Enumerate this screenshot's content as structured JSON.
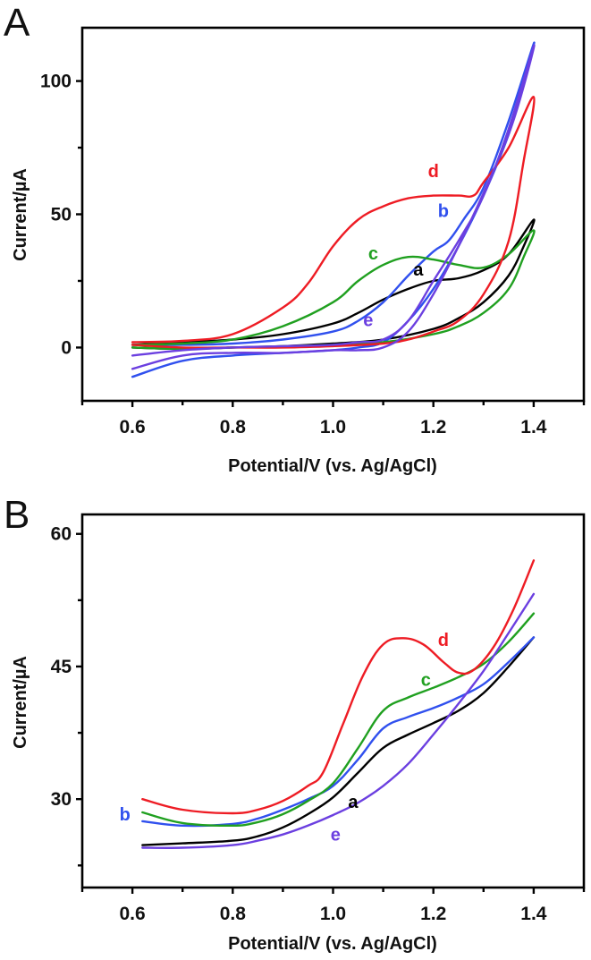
{
  "chart_data": [
    {
      "panel_label": "A",
      "type": "line",
      "title": "",
      "xlabel": "Potential/V (vs. Ag/AgCl)",
      "ylabel": "Current/µA",
      "xlim": [
        0.5,
        1.5
      ],
      "ylim": [
        -20,
        120
      ],
      "xticks": [
        0.6,
        0.8,
        1.0,
        1.2,
        1.4
      ],
      "xtick_labels": [
        "0.6",
        "0.8",
        "1.0",
        "1.2",
        "1.4"
      ],
      "xminor": [
        0.5,
        0.7,
        0.9,
        1.1,
        1.3,
        1.5
      ],
      "yticks": [
        0,
        50,
        100
      ],
      "ytick_labels": [
        "0",
        "50",
        "100"
      ],
      "yminor": [
        25,
        75
      ],
      "grid": false,
      "legend": "inline-labels",
      "series": [
        {
          "name": "a",
          "color": "#000000",
          "x": [
            0.6,
            0.7,
            0.8,
            0.9,
            1.0,
            1.05,
            1.1,
            1.15,
            1.2,
            1.25,
            1.3,
            1.35,
            1.4,
            1.38,
            1.35,
            1.3,
            1.25,
            1.2,
            1.1,
            1.0,
            0.9,
            0.8,
            0.7,
            0.6
          ],
          "y": [
            1,
            2,
            3,
            5,
            9,
            13,
            18,
            22,
            25,
            26,
            29,
            35,
            48,
            38,
            27,
            17,
            11,
            7,
            3,
            1.5,
            0.5,
            0,
            -0.5,
            0
          ],
          "label_at": [
            1.17,
            27
          ]
        },
        {
          "name": "b",
          "color": "#3050ee",
          "x": [
            0.6,
            0.7,
            0.8,
            0.9,
            1.0,
            1.05,
            1.1,
            1.15,
            1.2,
            1.23,
            1.26,
            1.3,
            1.35,
            1.4,
            1.38,
            1.35,
            1.3,
            1.25,
            1.2,
            1.15,
            1.1,
            1.05,
            1.0,
            0.9,
            0.8,
            0.7,
            0.6
          ],
          "y": [
            1,
            1,
            1.5,
            3,
            6,
            10,
            17,
            27,
            36,
            40,
            48,
            60,
            85,
            114,
            100,
            80,
            57,
            38,
            22,
            10,
            2,
            0,
            -1,
            -2,
            -3,
            -5,
            -11
          ],
          "label_at": [
            1.22,
            49
          ]
        },
        {
          "name": "c",
          "color": "#20a020",
          "x": [
            0.6,
            0.7,
            0.8,
            0.9,
            1.0,
            1.05,
            1.1,
            1.15,
            1.2,
            1.25,
            1.3,
            1.35,
            1.4,
            1.38,
            1.35,
            1.3,
            1.25,
            1.2,
            1.1,
            1.0,
            0.9,
            0.8,
            0.7,
            0.6
          ],
          "y": [
            1,
            1.5,
            3,
            8,
            17,
            25,
            31,
            34,
            33,
            31,
            30,
            35,
            44,
            34,
            22,
            13,
            8,
            5,
            2,
            1,
            0.5,
            0,
            -0.5,
            0
          ],
          "label_at": [
            1.08,
            33
          ]
        },
        {
          "name": "d",
          "color": "#ee1c24",
          "x": [
            0.6,
            0.7,
            0.8,
            0.9,
            0.95,
            1.0,
            1.05,
            1.1,
            1.15,
            1.2,
            1.25,
            1.28,
            1.3,
            1.35,
            1.4,
            1.38,
            1.35,
            1.3,
            1.25,
            1.2,
            1.15,
            1.1,
            1.0,
            0.9,
            0.8,
            0.7,
            0.6
          ],
          "y": [
            2,
            2.5,
            5,
            15,
            24,
            38,
            48,
            53,
            56,
            57,
            57,
            57,
            62,
            75,
            94,
            70,
            40,
            20,
            10,
            6,
            3,
            1.5,
            0.5,
            0,
            0,
            0,
            1
          ],
          "label_at": [
            1.2,
            64
          ]
        },
        {
          "name": "e",
          "color": "#6b3fe0",
          "x": [
            0.6,
            0.7,
            0.8,
            0.9,
            1.0,
            1.05,
            1.1,
            1.15,
            1.2,
            1.25,
            1.3,
            1.35,
            1.4,
            1.38,
            1.35,
            1.3,
            1.25,
            1.2,
            1.15,
            1.1,
            1.05,
            1.0,
            0.9,
            0.8,
            0.7,
            0.6
          ],
          "y": [
            -3,
            -1,
            0,
            0.5,
            1,
            2,
            3,
            10,
            25,
            40,
            57,
            82,
            113,
            98,
            80,
            58,
            38,
            20,
            6,
            0,
            -1,
            -1,
            -2,
            -2,
            -3,
            -8
          ],
          "label_at": [
            1.07,
            8
          ]
        }
      ]
    },
    {
      "panel_label": "B",
      "type": "line",
      "title": "",
      "xlabel": "Potential/V (vs. Ag/AgCl)",
      "ylabel": "Current/µA",
      "xlim": [
        0.5,
        1.5
      ],
      "ylim": [
        20,
        62.2
      ],
      "xticks": [
        0.6,
        0.8,
        1.0,
        1.2,
        1.4
      ],
      "xtick_labels": [
        "0.6",
        "0.8",
        "1.0",
        "1.2",
        "1.4"
      ],
      "xminor": [
        0.5,
        0.7,
        0.9,
        1.1,
        1.3,
        1.5
      ],
      "yticks": [
        30,
        45,
        60
      ],
      "ytick_labels": [
        "30",
        "45",
        "60"
      ],
      "yminor": [
        22.5,
        37.5,
        52.5
      ],
      "grid": false,
      "legend": "inline-labels",
      "series": [
        {
          "name": "a",
          "color": "#000000",
          "x": [
            0.62,
            0.7,
            0.8,
            0.85,
            0.9,
            0.95,
            1.0,
            1.05,
            1.1,
            1.15,
            1.2,
            1.25,
            1.3,
            1.35,
            1.4
          ],
          "y": [
            24.8,
            25.0,
            25.3,
            25.8,
            26.8,
            28.3,
            30.2,
            33.0,
            35.8,
            37.3,
            38.6,
            40.0,
            42.0,
            45.0,
            48.3
          ],
          "label_at": [
            1.04,
            29.0
          ]
        },
        {
          "name": "b",
          "color": "#3050ee",
          "x": [
            0.62,
            0.7,
            0.8,
            0.85,
            0.9,
            0.95,
            1.0,
            1.05,
            1.1,
            1.15,
            1.2,
            1.25,
            1.3,
            1.35,
            1.4
          ],
          "y": [
            27.5,
            27.0,
            27.2,
            27.8,
            28.8,
            30.0,
            31.5,
            34.5,
            38.0,
            39.3,
            40.3,
            41.5,
            43.0,
            45.5,
            48.3
          ],
          "label_at": [
            0.585,
            27.6
          ]
        },
        {
          "name": "c",
          "color": "#20a020",
          "x": [
            0.62,
            0.7,
            0.8,
            0.85,
            0.9,
            0.95,
            1.0,
            1.05,
            1.1,
            1.15,
            1.2,
            1.25,
            1.3,
            1.35,
            1.4
          ],
          "y": [
            28.5,
            27.3,
            27.0,
            27.4,
            28.3,
            29.8,
            31.8,
            35.8,
            40.0,
            41.5,
            42.6,
            43.8,
            45.3,
            47.8,
            51.0
          ],
          "label_at": [
            1.185,
            42.8
          ]
        },
        {
          "name": "d",
          "color": "#ee1c24",
          "x": [
            0.62,
            0.7,
            0.8,
            0.85,
            0.9,
            0.95,
            0.98,
            1.02,
            1.06,
            1.1,
            1.14,
            1.18,
            1.22,
            1.25,
            1.28,
            1.32,
            1.36,
            1.4
          ],
          "y": [
            30.0,
            28.8,
            28.4,
            28.8,
            29.8,
            31.5,
            33.0,
            38.5,
            44.0,
            47.5,
            48.2,
            47.5,
            45.5,
            44.3,
            44.6,
            47.2,
            51.5,
            57.0
          ],
          "label_at": [
            1.22,
            47.3
          ]
        },
        {
          "name": "e",
          "color": "#6b3fe0",
          "x": [
            0.62,
            0.7,
            0.8,
            0.85,
            0.9,
            0.95,
            1.0,
            1.05,
            1.1,
            1.15,
            1.2,
            1.25,
            1.3,
            1.35,
            1.4
          ],
          "y": [
            24.5,
            24.5,
            24.8,
            25.3,
            26.0,
            27.0,
            28.2,
            29.6,
            31.5,
            34.0,
            37.3,
            40.8,
            44.5,
            48.8,
            53.2
          ],
          "label_at": [
            1.005,
            25.3
          ]
        }
      ]
    }
  ]
}
